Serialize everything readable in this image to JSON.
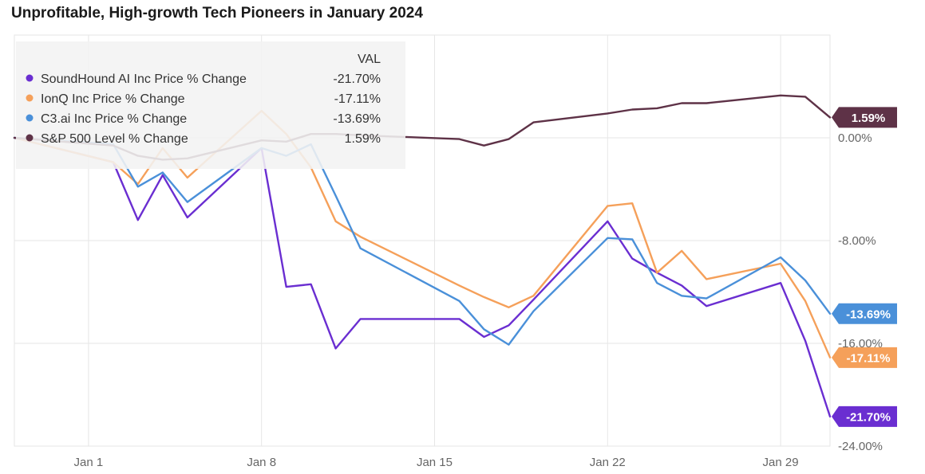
{
  "chart_data": {
    "type": "line",
    "title": "Unprofitable, High-growth Tech Pioneers in January 2024",
    "xlabel": "",
    "ylabel": "",
    "x": [
      "2023-12-29",
      "2024-01-02",
      "2024-01-03",
      "2024-01-04",
      "2024-01-05",
      "2024-01-08",
      "2024-01-09",
      "2024-01-10",
      "2024-01-11",
      "2024-01-12",
      "2024-01-16",
      "2024-01-17",
      "2024-01-18",
      "2024-01-19",
      "2024-01-22",
      "2024-01-23",
      "2024-01-24",
      "2024-01-25",
      "2024-01-26",
      "2024-01-29",
      "2024-01-30",
      "2024-01-31"
    ],
    "x_ticks": [
      {
        "value": "2024-01-01",
        "label": "Jan 1"
      },
      {
        "value": "2024-01-08",
        "label": "Jan 8"
      },
      {
        "value": "2024-01-15",
        "label": "Jan 15"
      },
      {
        "value": "2024-01-22",
        "label": "Jan 22"
      },
      {
        "value": "2024-01-29",
        "label": "Jan 29"
      }
    ],
    "xlim": [
      "2023-12-29",
      "2024-01-31"
    ],
    "ylim": [
      -24,
      8
    ],
    "y_ticks": [
      {
        "value": 0,
        "label": "0.00%"
      },
      {
        "value": -8,
        "label": "-8.00%"
      },
      {
        "value": -16,
        "label": "-16.00%"
      },
      {
        "value": -24,
        "label": "-24.00%"
      }
    ],
    "grid": true,
    "legend": {
      "placement": "top-left",
      "value_header": "VAL"
    },
    "series": [
      {
        "name": "SoundHound AI Inc Price % Change",
        "color": "#6a2ed1",
        "end_value": "-21.70%",
        "values": [
          0,
          -1.9,
          -6.4,
          -2.9,
          -6.2,
          -0.8,
          -11.6,
          -11.4,
          -16.4,
          -14.1,
          -14.1,
          -15.5,
          -14.6,
          -12.6,
          -6.5,
          -9.4,
          -10.5,
          -11.5,
          -13.1,
          -11.3,
          -15.8,
          -21.7
        ]
      },
      {
        "name": "IonQ Inc Price % Change",
        "color": "#f5a05a",
        "end_value": "-17.11%",
        "values": [
          0,
          -1.9,
          -3.6,
          -0.8,
          -3.1,
          2.1,
          0.3,
          -2.3,
          -6.5,
          -7.7,
          -11.5,
          -12.4,
          -13.2,
          -12.3,
          -5.3,
          -5.1,
          -10.5,
          -8.8,
          -11.0,
          -9.8,
          -12.7,
          -17.1
        ]
      },
      {
        "name": "C3.ai Inc Price % Change",
        "color": "#4a90d9",
        "end_value": "-13.69%",
        "values": [
          0,
          -0.5,
          -3.8,
          -2.7,
          -5.0,
          -0.8,
          -1.4,
          -0.5,
          -4.5,
          -8.6,
          -12.7,
          -14.9,
          -16.1,
          -13.5,
          -7.8,
          -7.9,
          -11.3,
          -12.3,
          -12.5,
          -9.3,
          -11.1,
          -13.69
        ]
      },
      {
        "name": "S&P 500 Level % Change",
        "color": "#5e3247",
        "end_value": "1.59%",
        "values": [
          0,
          -0.6,
          -1.4,
          -1.7,
          -1.6,
          -0.2,
          -0.3,
          0.3,
          0.3,
          0.2,
          -0.1,
          -0.6,
          -0.1,
          1.2,
          1.9,
          2.2,
          2.3,
          2.7,
          2.7,
          3.3,
          3.2,
          1.59
        ]
      }
    ],
    "end_labels": [
      {
        "series_index": 3,
        "text": "1.59%",
        "value": 1.59,
        "color": "#5e3247"
      },
      {
        "series_index": 2,
        "text": "-13.69%",
        "value": -13.69,
        "color": "#4a90d9"
      },
      {
        "series_index": 1,
        "text": "-17.11%",
        "value": -17.11,
        "color": "#f5a05a"
      },
      {
        "series_index": 0,
        "text": "-21.70%",
        "value": -21.7,
        "color": "#6a2ed1"
      }
    ]
  }
}
